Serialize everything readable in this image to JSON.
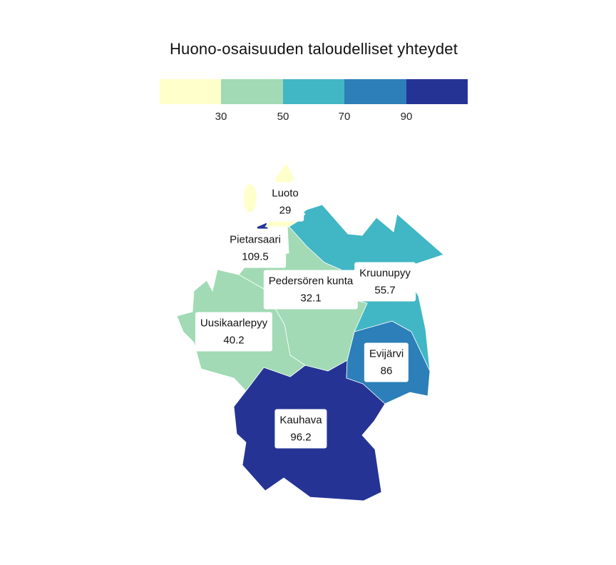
{
  "title": "Huono-osaisuuden taloudelliset yhteydet",
  "legend": {
    "colors": [
      "#ffffcc",
      "#a1dab4",
      "#41b6c4",
      "#2c7fb8",
      "#253494"
    ],
    "thresholds": [
      "30",
      "50",
      "70",
      "90"
    ]
  },
  "regions": [
    {
      "id": "luoto",
      "name": "Luoto",
      "value": "29",
      "color": "#ffffcc"
    },
    {
      "id": "pietarsaari",
      "name": "Pietarsaari",
      "value": "109.5",
      "color": "#253494"
    },
    {
      "id": "pedersoren-kunta",
      "name": "Pedersören kunta",
      "value": "32.1",
      "color": "#a1dab4"
    },
    {
      "id": "kruunupyy",
      "name": "Kruunupyy",
      "value": "55.7",
      "color": "#41b6c4"
    },
    {
      "id": "uusikaarlepyy",
      "name": "Uusikaarlepyy",
      "value": "40.2",
      "color": "#a1dab4"
    },
    {
      "id": "evijarvi",
      "name": "Evijärvi",
      "value": "86",
      "color": "#2c7fb8"
    },
    {
      "id": "kauhava",
      "name": "Kauhava",
      "value": "96.2",
      "color": "#253494"
    }
  ]
}
